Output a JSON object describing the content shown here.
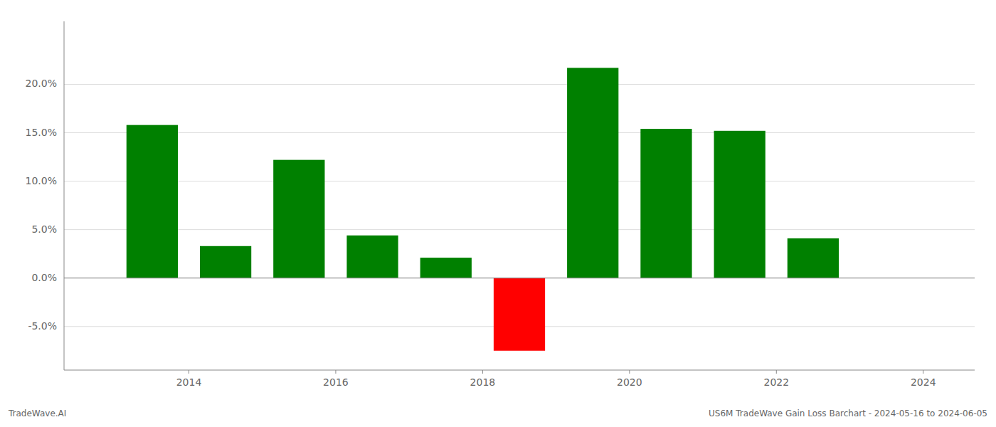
{
  "chart_data": {
    "type": "bar",
    "x": [
      2013,
      2014,
      2015,
      2016,
      2017,
      2018,
      2019,
      2020,
      2021,
      2022,
      2023
    ],
    "values": [
      0.158,
      0.033,
      0.122,
      0.044,
      0.021,
      -0.075,
      0.217,
      0.154,
      0.152,
      0.041,
      0.0
    ],
    "colors": [
      "#008000",
      "#008000",
      "#008000",
      "#008000",
      "#008000",
      "#ff0000",
      "#008000",
      "#008000",
      "#008000",
      "#008000",
      "#008000"
    ],
    "xlim": [
      2012.3,
      2024.7
    ],
    "ylim": [
      -0.095,
      0.265
    ],
    "xticks": [
      2014,
      2016,
      2018,
      2020,
      2022,
      2024
    ],
    "yticks": [
      {
        "value": -0.05,
        "label": "-5.0%"
      },
      {
        "value": 0.0,
        "label": "0.0%"
      },
      {
        "value": 0.05,
        "label": "5.0%"
      },
      {
        "value": 0.1,
        "label": "10.0%"
      },
      {
        "value": 0.15,
        "label": "15.0%"
      },
      {
        "value": 0.2,
        "label": "20.0%"
      }
    ],
    "grid": true,
    "annotations": [
      "TradeWave.AI",
      "US6M TradeWave Gain Loss Barchart - 2024-05-16 to 2024-06-05"
    ]
  }
}
